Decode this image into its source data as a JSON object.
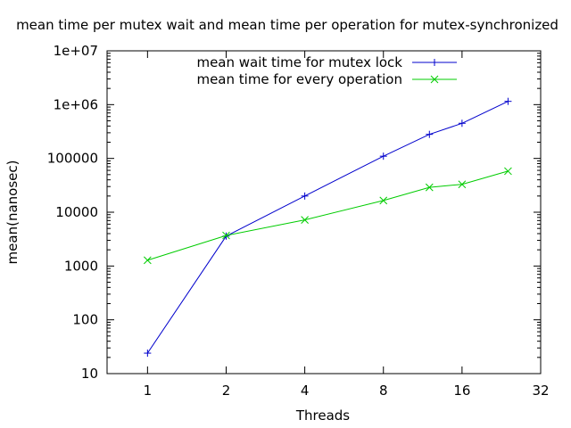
{
  "chart_data": {
    "type": "line",
    "title": "mean time per mutex wait and mean time per operation for mutex-synchronized",
    "xlabel": "Threads",
    "ylabel": "mean(nanosec)",
    "x_scale": "log2",
    "y_scale": "log10",
    "xlim": [
      0.7,
      32
    ],
    "ylim": [
      10,
      10000000
    ],
    "x_ticks": [
      1,
      2,
      4,
      8,
      16,
      32
    ],
    "x_tick_labels": [
      "1",
      "2",
      "4",
      "8",
      "16",
      "32"
    ],
    "y_ticks": [
      10,
      100,
      1000,
      10000,
      100000,
      1000000,
      10000000
    ],
    "y_tick_labels": [
      "10",
      "100",
      "1000",
      "10000",
      "100000",
      "1e+06",
      "1e+07"
    ],
    "grid": false,
    "legend_position": "top-center",
    "series": [
      {
        "name": "mean wait time for mutex lock",
        "color": "#0000cc",
        "marker": "plus",
        "x": [
          1,
          2,
          4,
          8,
          12,
          16,
          24
        ],
        "y": [
          24,
          3600,
          20000,
          110000,
          280000,
          450000,
          1150000
        ]
      },
      {
        "name": "mean time for every operation",
        "color": "#00cc00",
        "marker": "cross",
        "x": [
          1,
          2,
          4,
          8,
          12,
          16,
          24
        ],
        "y": [
          1280,
          3700,
          7200,
          16500,
          29000,
          33000,
          58000
        ]
      }
    ]
  }
}
